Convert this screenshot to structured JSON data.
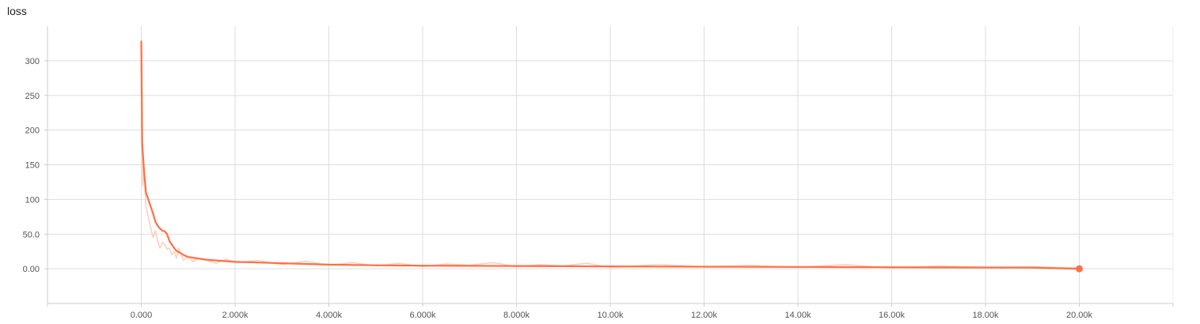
{
  "chart_data": {
    "type": "line",
    "title": "loss",
    "xlabel": "",
    "ylabel": "",
    "xlim": [
      -2000,
      22000
    ],
    "ylim": [
      -50,
      350
    ],
    "x_ticks": [
      0,
      2000,
      4000,
      6000,
      8000,
      10000,
      12000,
      14000,
      16000,
      18000,
      20000
    ],
    "x_tick_labels": [
      "0.000",
      "2.000k",
      "4.000k",
      "6.000k",
      "8.000k",
      "10.00k",
      "12.00k",
      "14.00k",
      "16.00k",
      "18.00k",
      "20.00k"
    ],
    "y_ticks": [
      0,
      50,
      100,
      150,
      200,
      250,
      300
    ],
    "y_tick_labels": [
      "0.00",
      "50.0",
      "100",
      "150",
      "200",
      "250",
      "300"
    ],
    "grid": true,
    "legend": "none",
    "series": [
      {
        "role": "smoothed",
        "color": "#ff7043",
        "x": [
          0,
          20,
          40,
          60,
          100,
          150,
          200,
          250,
          300,
          350,
          400,
          450,
          500,
          550,
          600,
          650,
          700,
          750,
          800,
          900,
          1000,
          1200,
          1400,
          1600,
          1800,
          2000,
          2500,
          3000,
          3500,
          4000,
          5000,
          6000,
          7000,
          8000,
          9000,
          10000,
          11000,
          12000,
          13000,
          14000,
          15000,
          16000,
          17000,
          18000,
          19000,
          20000
        ],
        "y": [
          328,
          180,
          160,
          140,
          110,
          100,
          90,
          80,
          68,
          62,
          58,
          55,
          54,
          50,
          40,
          35,
          30,
          26,
          24,
          20,
          17,
          15,
          13,
          12,
          11,
          10,
          9,
          8,
          7,
          6,
          5,
          4.5,
          4.2,
          4,
          3.7,
          3.4,
          3.2,
          3,
          2.8,
          2.6,
          2.4,
          2.2,
          2,
          1.8,
          1.6,
          0
        ]
      },
      {
        "role": "raw",
        "color": "#ffccbc",
        "x": [
          0,
          30,
          60,
          100,
          150,
          200,
          250,
          300,
          350,
          400,
          450,
          500,
          550,
          600,
          650,
          700,
          750,
          800,
          900,
          1000,
          1100,
          1200,
          1400,
          1600,
          1800,
          2000,
          2500,
          3000,
          3500,
          4000,
          4500,
          5000,
          5500,
          6000,
          6500,
          7000,
          7500,
          8000,
          8500,
          9000,
          9500,
          10000,
          11000,
          12000,
          13000,
          14000,
          15000,
          16000,
          17000,
          18000,
          19000,
          20000
        ],
        "y": [
          300,
          120,
          140,
          90,
          75,
          60,
          45,
          55,
          40,
          30,
          38,
          35,
          28,
          30,
          20,
          25,
          15,
          30,
          12,
          18,
          10,
          15,
          12,
          8,
          14,
          9,
          12,
          6,
          11,
          5,
          9,
          4,
          8,
          3,
          7,
          5,
          9,
          3,
          6,
          4,
          8,
          2,
          6,
          3,
          5,
          2,
          6,
          1,
          4,
          2,
          3,
          1
        ]
      }
    ],
    "end_marker": {
      "x": 20000,
      "y": 0
    }
  }
}
